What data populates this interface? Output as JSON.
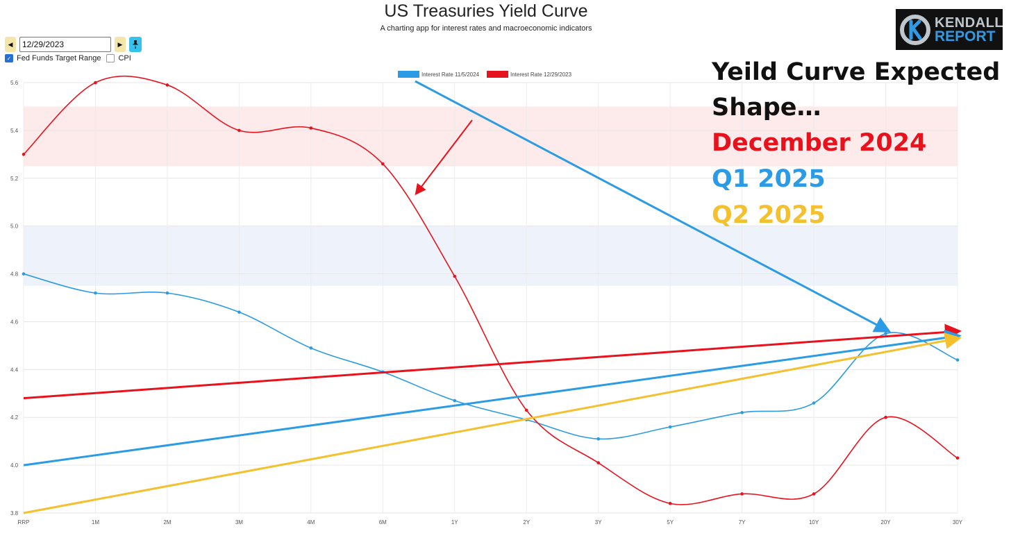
{
  "header": {
    "title": "US Treasuries Yield Curve",
    "subtitle": "A charting app for interest rates and macroeconomic indicators"
  },
  "controls": {
    "date_value": "12/29/2023",
    "prev_icon": "caret-left-icon",
    "next_icon": "caret-right-icon",
    "pin_icon": "pin-icon"
  },
  "checkboxes": [
    {
      "label": "Fed Funds Target Range",
      "checked": true
    },
    {
      "label": "CPI",
      "checked": false
    }
  ],
  "logo": {
    "line1": "KENDALL",
    "line2": "REPORT"
  },
  "annotations": {
    "line1": "Yeild Curve Expected",
    "line2": "Shape…",
    "line3": "December 2024",
    "line4": "Q1 2025",
    "line5": "Q2 2025",
    "colors": {
      "black": "#111111",
      "red": "#e8121d",
      "blue": "#2a9be4",
      "yellow": "#f5c02d"
    }
  },
  "chart_data": {
    "type": "line",
    "categories": [
      "RRP",
      "1M",
      "2M",
      "3M",
      "4M",
      "6M",
      "1Y",
      "2Y",
      "3Y",
      "5Y",
      "7Y",
      "10Y",
      "20Y",
      "30Y"
    ],
    "series": [
      {
        "name": "Interest Rate 11/5/2024",
        "color": "#2a9be4",
        "values": [
          4.8,
          4.72,
          4.72,
          4.64,
          4.49,
          4.39,
          4.27,
          4.19,
          4.11,
          4.16,
          4.22,
          4.26,
          4.55,
          4.44
        ]
      },
      {
        "name": "Interest Rate 12/29/2023",
        "color": "#e8121d",
        "values": [
          5.3,
          5.6,
          5.59,
          5.4,
          5.41,
          5.26,
          4.79,
          4.23,
          4.01,
          3.84,
          3.88,
          3.88,
          4.2,
          4.03
        ]
      }
    ],
    "ylim": [
      3.8,
      5.6
    ],
    "yticks": [
      "5.6",
      "5.4",
      "5.2",
      "5.0",
      "4.8",
      "4.6",
      "4.4",
      "4.2",
      "4.0",
      "3.8"
    ],
    "bands": [
      {
        "from": 5.25,
        "to": 5.5,
        "color": "#fdeaea"
      },
      {
        "from": 4.75,
        "to": 5.0,
        "color": "#eef3fb"
      }
    ],
    "trend_lines": [
      {
        "name": "December 2024",
        "color": "#e8121d",
        "from": [
          "RRP",
          4.28
        ],
        "to": [
          "30Y",
          4.56
        ]
      },
      {
        "name": "Q1 2025",
        "color": "#2a9be4",
        "from": [
          "RRP",
          4.0
        ],
        "to": [
          "30Y",
          4.54
        ]
      },
      {
        "name": "Q2 2025",
        "color": "#f5c02d",
        "from": [
          "RRP",
          3.8
        ],
        "to": [
          "30Y",
          4.53
        ]
      }
    ],
    "grid": true,
    "legend_position": "top-center"
  }
}
